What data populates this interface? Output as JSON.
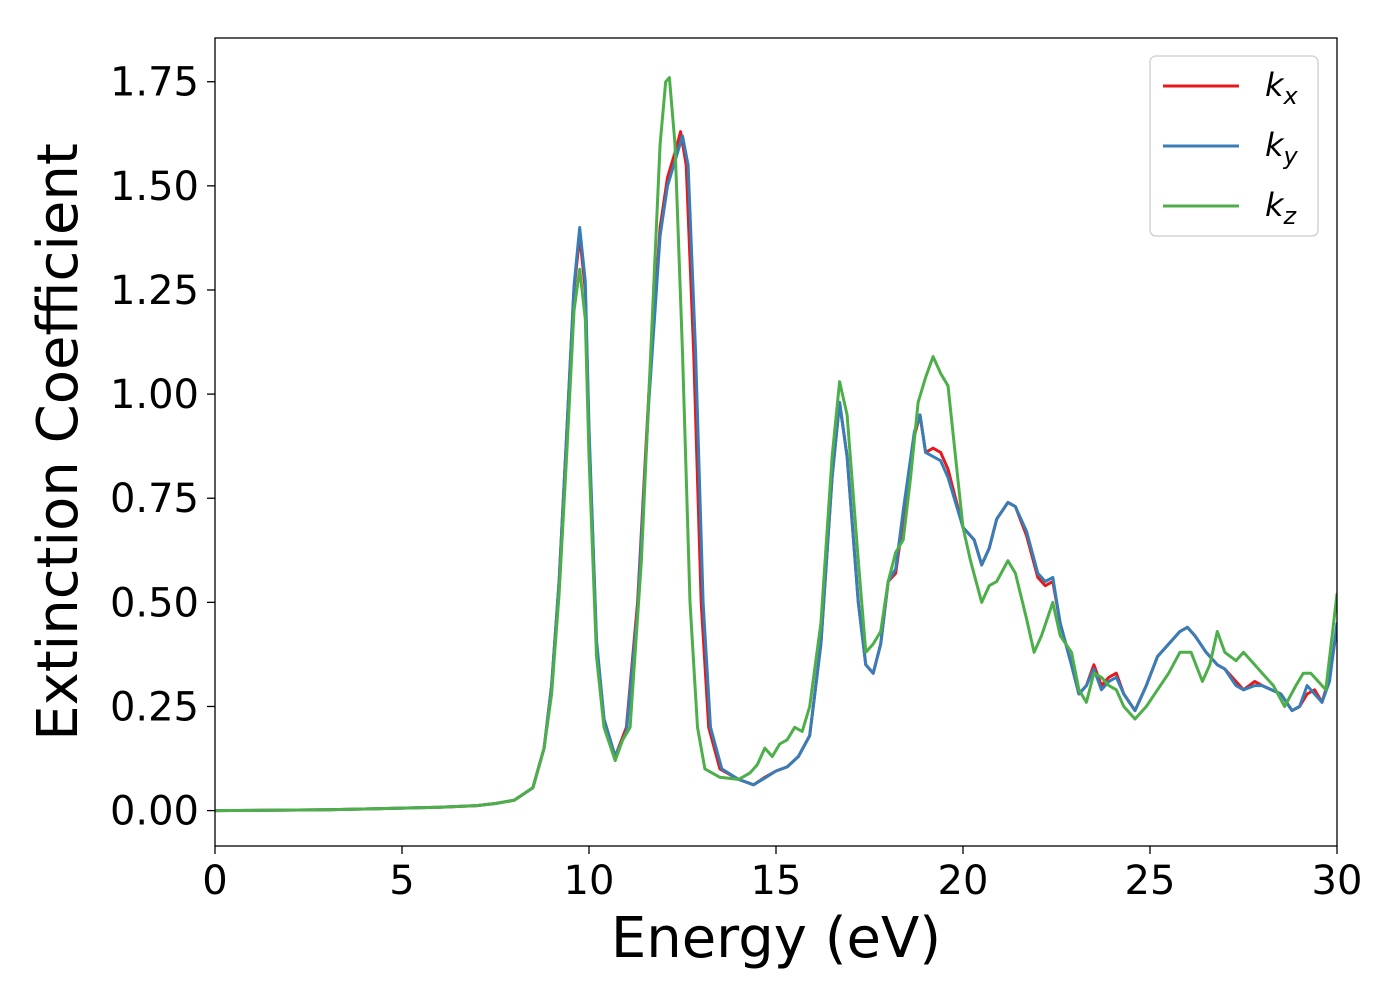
{
  "chart_data": {
    "type": "line",
    "title": "",
    "xlabel": "Energy (eV)",
    "ylabel": "Extinction Coefficient",
    "xlim": [
      0,
      30
    ],
    "ylim": [
      -0.085,
      1.855
    ],
    "xticks": [
      0,
      5,
      10,
      15,
      20,
      25,
      30
    ],
    "xtick_labels": [
      "0",
      "5",
      "10",
      "15",
      "20",
      "25",
      "30"
    ],
    "yticks": [
      0,
      0.25,
      0.5,
      0.75,
      1.0,
      1.25,
      1.5,
      1.75
    ],
    "ytick_labels": [
      "0.00",
      "0.25",
      "0.50",
      "0.75",
      "1.00",
      "1.25",
      "1.50",
      "1.75"
    ],
    "grid": false,
    "legend_position": "top-right",
    "series": [
      {
        "name": "k",
        "subscript": "x",
        "color": "#e41a1c",
        "points": [
          [
            0,
            0.0
          ],
          [
            3,
            0.002
          ],
          [
            6,
            0.008
          ],
          [
            7,
            0.012
          ],
          [
            7.5,
            0.017
          ],
          [
            8,
            0.025
          ],
          [
            8.5,
            0.055
          ],
          [
            8.8,
            0.15
          ],
          [
            9.0,
            0.3
          ],
          [
            9.2,
            0.55
          ],
          [
            9.4,
            0.9
          ],
          [
            9.6,
            1.25
          ],
          [
            9.75,
            1.38
          ],
          [
            9.9,
            1.25
          ],
          [
            10.0,
            0.9
          ],
          [
            10.2,
            0.4
          ],
          [
            10.4,
            0.22
          ],
          [
            10.7,
            0.13
          ],
          [
            11.0,
            0.2
          ],
          [
            11.3,
            0.5
          ],
          [
            11.6,
            1.0
          ],
          [
            11.9,
            1.4
          ],
          [
            12.1,
            1.52
          ],
          [
            12.3,
            1.58
          ],
          [
            12.45,
            1.63
          ],
          [
            12.6,
            1.55
          ],
          [
            12.8,
            1.1
          ],
          [
            13.0,
            0.5
          ],
          [
            13.2,
            0.2
          ],
          [
            13.5,
            0.1
          ],
          [
            14.0,
            0.075
          ],
          [
            14.4,
            0.062
          ],
          [
            14.7,
            0.08
          ],
          [
            15.0,
            0.095
          ],
          [
            15.3,
            0.105
          ],
          [
            15.6,
            0.13
          ],
          [
            15.9,
            0.18
          ],
          [
            16.2,
            0.4
          ],
          [
            16.5,
            0.8
          ],
          [
            16.7,
            0.98
          ],
          [
            16.9,
            0.85
          ],
          [
            17.2,
            0.5
          ],
          [
            17.4,
            0.35
          ],
          [
            17.6,
            0.33
          ],
          [
            17.8,
            0.4
          ],
          [
            18.0,
            0.55
          ],
          [
            18.2,
            0.57
          ],
          [
            18.4,
            0.7
          ],
          [
            18.7,
            0.9
          ],
          [
            18.85,
            0.95
          ],
          [
            19.0,
            0.86
          ],
          [
            19.2,
            0.87
          ],
          [
            19.4,
            0.86
          ],
          [
            19.6,
            0.82
          ],
          [
            20.0,
            0.68
          ],
          [
            20.3,
            0.65
          ],
          [
            20.5,
            0.59
          ],
          [
            20.7,
            0.63
          ],
          [
            20.9,
            0.7
          ],
          [
            21.2,
            0.74
          ],
          [
            21.4,
            0.73
          ],
          [
            21.7,
            0.66
          ],
          [
            22.0,
            0.56
          ],
          [
            22.2,
            0.54
          ],
          [
            22.4,
            0.55
          ],
          [
            22.6,
            0.45
          ],
          [
            22.9,
            0.35
          ],
          [
            23.1,
            0.28
          ],
          [
            23.3,
            0.3
          ],
          [
            23.5,
            0.35
          ],
          [
            23.7,
            0.3
          ],
          [
            23.9,
            0.32
          ],
          [
            24.1,
            0.33
          ],
          [
            24.3,
            0.28
          ],
          [
            24.6,
            0.24
          ],
          [
            24.9,
            0.3
          ],
          [
            25.2,
            0.37
          ],
          [
            25.5,
            0.4
          ],
          [
            25.8,
            0.43
          ],
          [
            26.0,
            0.44
          ],
          [
            26.2,
            0.42
          ],
          [
            26.5,
            0.38
          ],
          [
            26.8,
            0.35
          ],
          [
            27.0,
            0.34
          ],
          [
            27.3,
            0.31
          ],
          [
            27.5,
            0.29
          ],
          [
            27.8,
            0.31
          ],
          [
            28.0,
            0.3
          ],
          [
            28.5,
            0.28
          ],
          [
            28.8,
            0.24
          ],
          [
            29.0,
            0.25
          ],
          [
            29.2,
            0.28
          ],
          [
            29.4,
            0.29
          ],
          [
            29.6,
            0.26
          ],
          [
            29.8,
            0.32
          ],
          [
            30.0,
            0.44
          ]
        ]
      },
      {
        "name": "k",
        "subscript": "y",
        "color": "#377eb8",
        "points": [
          [
            0,
            0.0
          ],
          [
            3,
            0.002
          ],
          [
            6,
            0.008
          ],
          [
            7,
            0.012
          ],
          [
            7.5,
            0.017
          ],
          [
            8,
            0.025
          ],
          [
            8.5,
            0.055
          ],
          [
            8.8,
            0.15
          ],
          [
            9.0,
            0.3
          ],
          [
            9.2,
            0.55
          ],
          [
            9.4,
            0.9
          ],
          [
            9.6,
            1.26
          ],
          [
            9.75,
            1.4
          ],
          [
            9.9,
            1.27
          ],
          [
            10.0,
            0.92
          ],
          [
            10.2,
            0.41
          ],
          [
            10.4,
            0.22
          ],
          [
            10.7,
            0.13
          ],
          [
            11.0,
            0.19
          ],
          [
            11.3,
            0.48
          ],
          [
            11.6,
            0.98
          ],
          [
            11.9,
            1.38
          ],
          [
            12.1,
            1.5
          ],
          [
            12.3,
            1.56
          ],
          [
            12.5,
            1.62
          ],
          [
            12.65,
            1.55
          ],
          [
            12.85,
            1.1
          ],
          [
            13.05,
            0.5
          ],
          [
            13.25,
            0.2
          ],
          [
            13.55,
            0.1
          ],
          [
            14.0,
            0.075
          ],
          [
            14.4,
            0.062
          ],
          [
            14.7,
            0.078
          ],
          [
            15.0,
            0.095
          ],
          [
            15.3,
            0.105
          ],
          [
            15.6,
            0.13
          ],
          [
            15.9,
            0.18
          ],
          [
            16.2,
            0.4
          ],
          [
            16.5,
            0.8
          ],
          [
            16.7,
            0.98
          ],
          [
            16.9,
            0.85
          ],
          [
            17.2,
            0.5
          ],
          [
            17.4,
            0.35
          ],
          [
            17.6,
            0.33
          ],
          [
            17.8,
            0.4
          ],
          [
            18.0,
            0.55
          ],
          [
            18.2,
            0.58
          ],
          [
            18.4,
            0.72
          ],
          [
            18.7,
            0.91
          ],
          [
            18.85,
            0.95
          ],
          [
            19.0,
            0.86
          ],
          [
            19.2,
            0.85
          ],
          [
            19.4,
            0.84
          ],
          [
            19.6,
            0.8
          ],
          [
            20.0,
            0.68
          ],
          [
            20.3,
            0.65
          ],
          [
            20.5,
            0.59
          ],
          [
            20.7,
            0.63
          ],
          [
            20.9,
            0.7
          ],
          [
            21.2,
            0.74
          ],
          [
            21.4,
            0.73
          ],
          [
            21.7,
            0.67
          ],
          [
            22.0,
            0.57
          ],
          [
            22.2,
            0.55
          ],
          [
            22.4,
            0.56
          ],
          [
            22.6,
            0.45
          ],
          [
            22.9,
            0.35
          ],
          [
            23.1,
            0.28
          ],
          [
            23.3,
            0.3
          ],
          [
            23.5,
            0.34
          ],
          [
            23.7,
            0.29
          ],
          [
            23.9,
            0.31
          ],
          [
            24.1,
            0.32
          ],
          [
            24.3,
            0.28
          ],
          [
            24.6,
            0.24
          ],
          [
            24.9,
            0.3
          ],
          [
            25.2,
            0.37
          ],
          [
            25.5,
            0.4
          ],
          [
            25.8,
            0.43
          ],
          [
            26.0,
            0.44
          ],
          [
            26.2,
            0.42
          ],
          [
            26.5,
            0.38
          ],
          [
            26.8,
            0.35
          ],
          [
            27.0,
            0.34
          ],
          [
            27.3,
            0.3
          ],
          [
            27.5,
            0.29
          ],
          [
            27.8,
            0.3
          ],
          [
            28.0,
            0.3
          ],
          [
            28.5,
            0.28
          ],
          [
            28.8,
            0.24
          ],
          [
            29.0,
            0.25
          ],
          [
            29.2,
            0.3
          ],
          [
            29.4,
            0.28
          ],
          [
            29.6,
            0.26
          ],
          [
            29.8,
            0.31
          ],
          [
            30.0,
            0.45
          ]
        ]
      },
      {
        "name": "k",
        "subscript": "z",
        "color": "#4daf4a",
        "points": [
          [
            0,
            0.0
          ],
          [
            3,
            0.002
          ],
          [
            6,
            0.008
          ],
          [
            7,
            0.012
          ],
          [
            7.5,
            0.017
          ],
          [
            8,
            0.025
          ],
          [
            8.5,
            0.055
          ],
          [
            8.8,
            0.15
          ],
          [
            9.0,
            0.28
          ],
          [
            9.2,
            0.52
          ],
          [
            9.4,
            0.85
          ],
          [
            9.6,
            1.2
          ],
          [
            9.75,
            1.3
          ],
          [
            9.9,
            1.18
          ],
          [
            10.0,
            0.85
          ],
          [
            10.2,
            0.37
          ],
          [
            10.4,
            0.2
          ],
          [
            10.7,
            0.12
          ],
          [
            10.9,
            0.17
          ],
          [
            11.1,
            0.2
          ],
          [
            11.4,
            0.6
          ],
          [
            11.7,
            1.2
          ],
          [
            11.9,
            1.6
          ],
          [
            12.05,
            1.75
          ],
          [
            12.15,
            1.76
          ],
          [
            12.3,
            1.6
          ],
          [
            12.5,
            1.1
          ],
          [
            12.7,
            0.5
          ],
          [
            12.9,
            0.2
          ],
          [
            13.1,
            0.1
          ],
          [
            13.5,
            0.08
          ],
          [
            14.0,
            0.075
          ],
          [
            14.3,
            0.09
          ],
          [
            14.5,
            0.11
          ],
          [
            14.7,
            0.15
          ],
          [
            14.9,
            0.13
          ],
          [
            15.1,
            0.16
          ],
          [
            15.3,
            0.17
          ],
          [
            15.5,
            0.2
          ],
          [
            15.7,
            0.19
          ],
          [
            15.9,
            0.25
          ],
          [
            16.2,
            0.45
          ],
          [
            16.5,
            0.85
          ],
          [
            16.7,
            1.03
          ],
          [
            16.9,
            0.95
          ],
          [
            17.2,
            0.6
          ],
          [
            17.4,
            0.38
          ],
          [
            17.6,
            0.4
          ],
          [
            17.8,
            0.43
          ],
          [
            18.0,
            0.55
          ],
          [
            18.2,
            0.62
          ],
          [
            18.4,
            0.65
          ],
          [
            18.6,
            0.8
          ],
          [
            18.8,
            0.98
          ],
          [
            19.0,
            1.04
          ],
          [
            19.2,
            1.09
          ],
          [
            19.4,
            1.05
          ],
          [
            19.6,
            1.02
          ],
          [
            19.8,
            0.85
          ],
          [
            20.0,
            0.68
          ],
          [
            20.2,
            0.6
          ],
          [
            20.5,
            0.5
          ],
          [
            20.7,
            0.54
          ],
          [
            20.9,
            0.55
          ],
          [
            21.2,
            0.6
          ],
          [
            21.4,
            0.57
          ],
          [
            21.7,
            0.46
          ],
          [
            21.9,
            0.38
          ],
          [
            22.1,
            0.42
          ],
          [
            22.4,
            0.5
          ],
          [
            22.6,
            0.42
          ],
          [
            22.9,
            0.38
          ],
          [
            23.1,
            0.29
          ],
          [
            23.3,
            0.26
          ],
          [
            23.5,
            0.33
          ],
          [
            23.7,
            0.32
          ],
          [
            23.9,
            0.3
          ],
          [
            24.1,
            0.29
          ],
          [
            24.3,
            0.25
          ],
          [
            24.6,
            0.22
          ],
          [
            24.9,
            0.25
          ],
          [
            25.2,
            0.29
          ],
          [
            25.5,
            0.33
          ],
          [
            25.8,
            0.38
          ],
          [
            26.1,
            0.38
          ],
          [
            26.4,
            0.31
          ],
          [
            26.6,
            0.35
          ],
          [
            26.8,
            0.43
          ],
          [
            27.0,
            0.38
          ],
          [
            27.3,
            0.36
          ],
          [
            27.5,
            0.38
          ],
          [
            27.8,
            0.35
          ],
          [
            28.0,
            0.33
          ],
          [
            28.3,
            0.3
          ],
          [
            28.6,
            0.25
          ],
          [
            28.9,
            0.3
          ],
          [
            29.1,
            0.33
          ],
          [
            29.3,
            0.33
          ],
          [
            29.5,
            0.31
          ],
          [
            29.7,
            0.29
          ],
          [
            30.0,
            0.52
          ]
        ]
      }
    ]
  }
}
